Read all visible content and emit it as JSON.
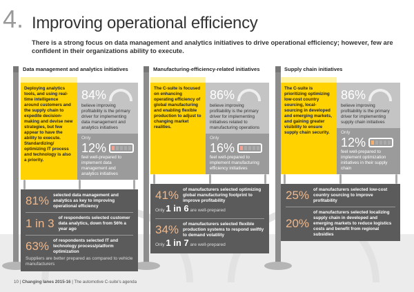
{
  "header": {
    "number": "4.",
    "title": "Improving operational efficiency",
    "subtitle": "There is a strong focus on data management and analytics initiatives to drive operational efficiency; however, few are confident in their organizations ability to execute."
  },
  "colors": {
    "yellow": "#ffd200",
    "dark_panel": "#5b5b5b",
    "accent_pct": "#f2b88a"
  },
  "columns": [
    {
      "heading": "Data management and analytics initiatives",
      "description": "Deploying analytics tools, and using real-time intelligence around customers and the supply chain to expedite decision-making and devise new strategies, but few appear to have the ability to execute. Standardizing/ optimizing IT process and technology is also a priority.",
      "driver_pct": "84%",
      "driver_text": "believe improving profitability is the primary driver for implementing data management and analytics initiatives",
      "only": "Only",
      "prepared_pct": "12%",
      "prepared_level": 0.12,
      "prepared_text": "feel well-prepared to implement data management and analytics initiatives",
      "stats": [
        {
          "pct": "81%",
          "text": "selected data management and analytics as key to improving operational efficiency"
        },
        {
          "pct": "1 in 3",
          "text": "of respondents selected customer data analytics, down from 56% a year ago"
        },
        {
          "pct": "63%",
          "text": "of respondents selected IT and technology process/platform optimization"
        }
      ],
      "note": "Suppliers are better prepared as compared to vehicle manufacturers"
    },
    {
      "heading": "Manufacturing-efficiency-related initiatives",
      "description": "The C-suite is focused on enhancing operating efficiency of global manufacturing and enabling flexible production to adjust to changing market realities.",
      "driver_pct": "86%",
      "driver_text": "believe improving profitability is the primary driver for implementing initiatives related to manufacturing operations",
      "only": "Only",
      "prepared_pct": "16%",
      "prepared_level": 0.16,
      "prepared_text": "feel well-prepared to implement manufacturing efficiency initiatives",
      "stats": [
        {
          "pct": "41%",
          "text": "of manufacturers selected optimizing global manufacturing footprint to improve profitability",
          "wp_pre": "Only",
          "wp_num": "1 in 6",
          "wp_post": "are well-prepared"
        },
        {
          "pct": "34%",
          "text": "of manufacturers selected flexible production systems to respond swiftly to demand volatility",
          "wp_pre": "Only",
          "wp_num": "1 in 7",
          "wp_post": "are well-prepared"
        }
      ]
    },
    {
      "heading": "Supply chain initiatives",
      "description": "The C-suite is prioritizing optimizing low-cost country sourcing, local-sourcing in developed and emerging markets, and gaining greater visibility to ensure supply chain security.",
      "driver_pct": "86%",
      "driver_text": "believe improving profitability is the primary driver for implementing supply chain initiatives",
      "only": "Only",
      "prepared_pct": "12%",
      "prepared_level": 0.12,
      "prepared_text": "feel well-prepared to implement optimization initiatives in their supply chain",
      "stats": [
        {
          "pct": "25%",
          "text": "of manufacturers selected low-cost country sourcing to improve profitability"
        },
        {
          "pct": "20%",
          "text": "of manufacturers selected localizing supply chain in developed and emerging markets to reduce logistics costs and benefit from regional subsidies"
        }
      ]
    }
  ],
  "footer": {
    "page": "10",
    "separator": "|",
    "report": "Changing lanes 2015-16",
    "section": "The automotive C-suite's agenda"
  }
}
